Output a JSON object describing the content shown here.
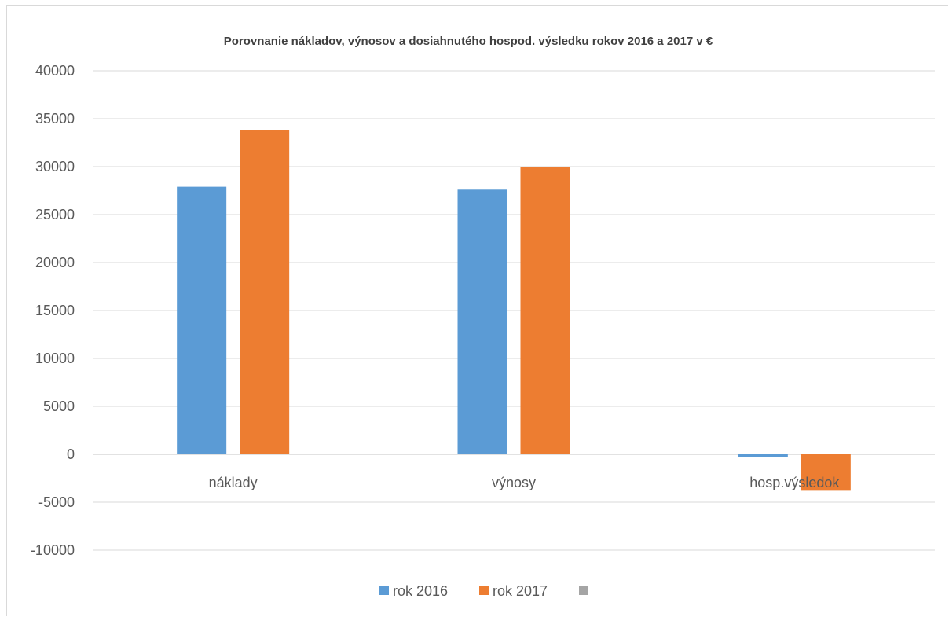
{
  "chart_data": {
    "type": "bar",
    "title": "Porovnanie nákladov, výnosov a dosiahnutého hospod. výsledku rokov 2016 a 2017 v €",
    "xlabel": "",
    "ylabel": "",
    "categories": [
      "náklady",
      "výnosy",
      "hosp.výsledok"
    ],
    "series": [
      {
        "name": "rok 2016",
        "color": "#5b9bd5",
        "values": [
          27900,
          27600,
          -300
        ]
      },
      {
        "name": "rok 2017",
        "color": "#ed7d31",
        "values": [
          33800,
          30000,
          -3800
        ]
      },
      {
        "name": "",
        "color": "#a5a5a5",
        "values": [
          null,
          null,
          null
        ]
      }
    ],
    "ylim": [
      -10000,
      40000
    ],
    "yticks": [
      40000,
      35000,
      30000,
      25000,
      20000,
      15000,
      10000,
      5000,
      0,
      -5000,
      -10000
    ],
    "grid": true,
    "legend_position": "bottom"
  }
}
